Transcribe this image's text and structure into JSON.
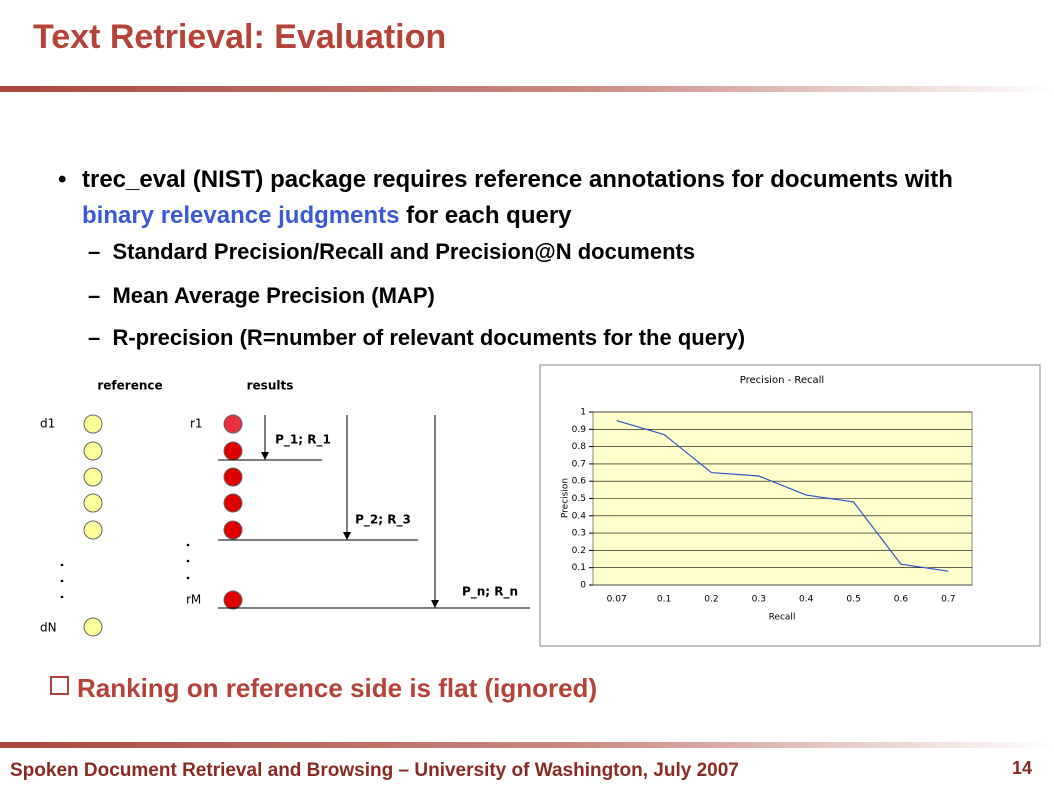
{
  "header": {
    "title": "Text Retrieval: Evaluation"
  },
  "bullet": {
    "parts": [
      "trec_eval (NIST) package requires reference annotations for documents with ",
      "binary relevance judgments",
      " for each query"
    ],
    "subs": [
      "Standard Precision/Recall and Precision@N documents",
      "Mean Average Precision (MAP)",
      "R-precision (R=number of relevant documents for the query)"
    ]
  },
  "diagram": {
    "reference": "reference",
    "results": "results",
    "d1": "d1",
    "dN": "dN",
    "r1": "r1",
    "rM": "rM",
    "cut1": "P_1; R_1",
    "cut2": "P_2; R_3",
    "cutn": "P_n; R_n"
  },
  "chart_data": {
    "type": "line",
    "title": "Precision - Recall",
    "x_label": "Recall",
    "y_label": "Precision",
    "categories": [
      "0.07",
      "0.1",
      "0.2",
      "0.3",
      "0.4",
      "0.5",
      "0.6",
      "0.7"
    ],
    "values": [
      0.95,
      0.87,
      0.65,
      0.63,
      0.52,
      0.48,
      0.12,
      0.08
    ],
    "color": "#3355cc",
    "ylim": [
      0,
      1
    ],
    "yticks": [
      0,
      0.1,
      0.2,
      0.3,
      0.4,
      0.5,
      0.6,
      0.7,
      0.8,
      0.9,
      1
    ],
    "grid": true
  },
  "note": "Ranking on reference side is flat (ignored)",
  "footer": {
    "text": "Spoken Document Retrieval and Browsing – University of Washington, July 2007",
    "page": "14"
  }
}
